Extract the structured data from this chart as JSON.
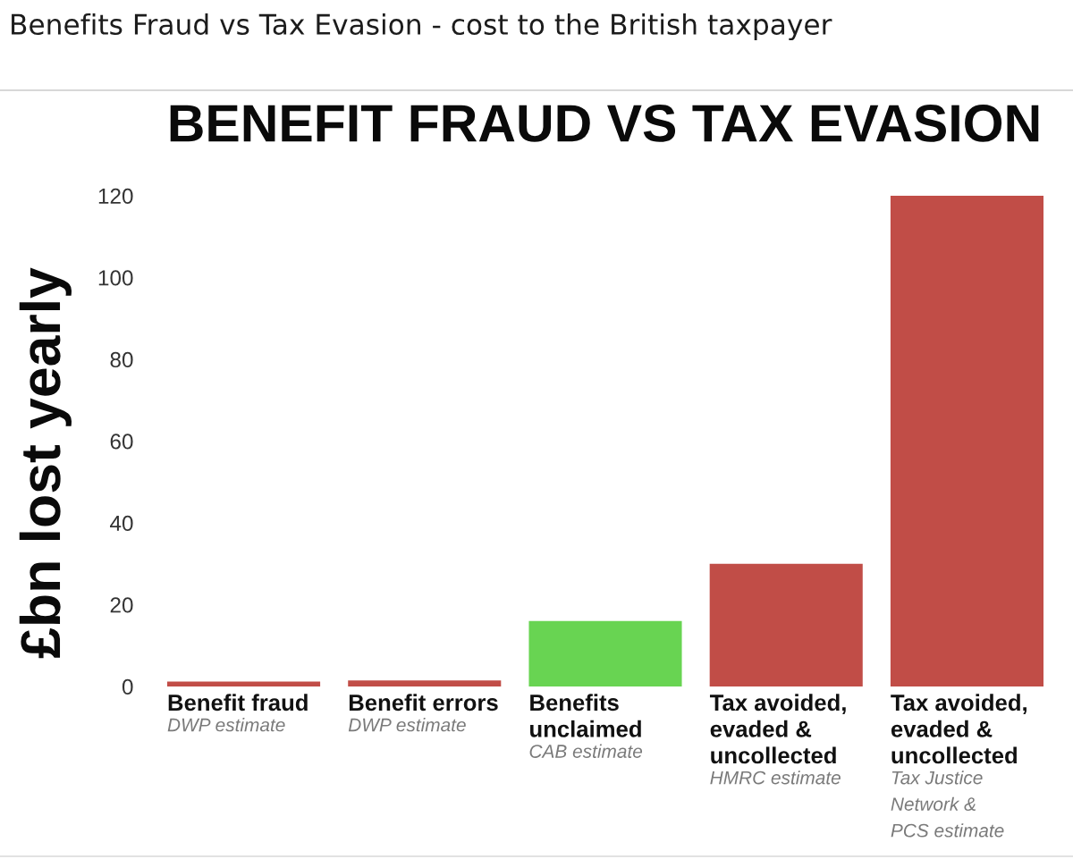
{
  "chart_data": {
    "type": "bar",
    "title": "Benefits Fraud vs Tax Evasion - cost to the British taxpayer",
    "subtitle": "BENEFIT FRAUD VS TAX EVASION",
    "ylabel": "£bn lost yearly",
    "categories": [
      "Benefit fraud",
      "Benefit errors",
      "Benefits\nunclaimed",
      "Tax avoided,\nevaded &\nuncollected",
      "Tax avoided,\nevaded &\nuncollected"
    ],
    "values": [
      1.2,
      1.5,
      16,
      30,
      120
    ],
    "colors": [
      "#c14d47",
      "#c14d47",
      "#68d452",
      "#c14d47",
      "#c14d47"
    ],
    "ylim": [
      0,
      120
    ],
    "yticks": [
      0,
      20,
      40,
      60,
      80,
      100,
      120
    ],
    "annotations": [
      "DWP estimate",
      "DWP estimate",
      "CAB estimate",
      "HMRC estimate",
      "Tax Justice\nNetwork &\nPCS estimate"
    ]
  }
}
